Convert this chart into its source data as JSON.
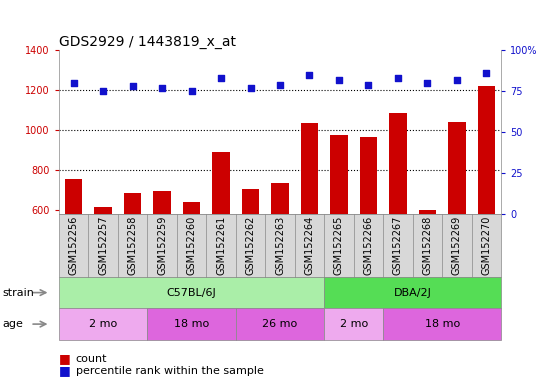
{
  "title": "GDS2929 / 1443819_x_at",
  "samples": [
    "GSM152256",
    "GSM152257",
    "GSM152258",
    "GSM152259",
    "GSM152260",
    "GSM152261",
    "GSM152262",
    "GSM152263",
    "GSM152264",
    "GSM152265",
    "GSM152266",
    "GSM152267",
    "GSM152268",
    "GSM152269",
    "GSM152270"
  ],
  "counts": [
    755,
    612,
    685,
    692,
    638,
    887,
    705,
    733,
    1035,
    975,
    965,
    1085,
    600,
    1040,
    1220
  ],
  "percentiles": [
    80,
    75,
    78,
    77,
    75,
    83,
    77,
    79,
    85,
    82,
    79,
    83,
    80,
    82,
    86
  ],
  "bar_color": "#cc0000",
  "dot_color": "#1111cc",
  "ylim_left": [
    580,
    1400
  ],
  "ylim_right": [
    0,
    100
  ],
  "yticks_left": [
    600,
    800,
    1000,
    1200,
    1400
  ],
  "yticks_right": [
    0,
    25,
    50,
    75,
    100
  ],
  "strain_groups": [
    {
      "label": "C57BL/6J",
      "start": 0,
      "end": 9,
      "color": "#aaeea8"
    },
    {
      "label": "DBA/2J",
      "start": 9,
      "end": 15,
      "color": "#55dd55"
    }
  ],
  "age_groups": [
    {
      "label": "2 mo",
      "start": 0,
      "end": 3,
      "color": "#eeaaee"
    },
    {
      "label": "18 mo",
      "start": 3,
      "end": 6,
      "color": "#dd66dd"
    },
    {
      "label": "26 mo",
      "start": 6,
      "end": 9,
      "color": "#dd66dd"
    },
    {
      "label": "2 mo",
      "start": 9,
      "end": 11,
      "color": "#eeaaee"
    },
    {
      "label": "18 mo",
      "start": 11,
      "end": 15,
      "color": "#dd66dd"
    }
  ],
  "sample_bg": "#d8d8d8",
  "plot_bg": "#ffffff",
  "border_color": "#888888",
  "fontsize_title": 10,
  "fontsize_tick": 7,
  "fontsize_row": 8,
  "fontsize_legend": 8
}
